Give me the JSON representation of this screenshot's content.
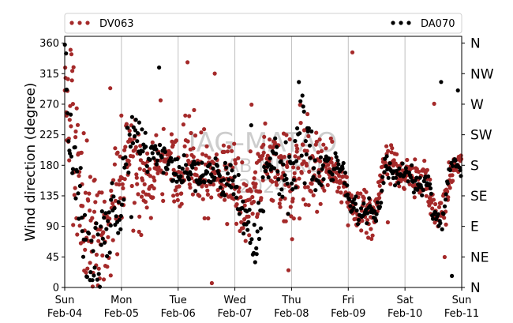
{
  "chart_data": {
    "type": "scatter",
    "title": "",
    "xlabel": "",
    "ylabel": "Wind direction (degree)",
    "ylim": [
      0,
      370
    ],
    "yticks": [
      0,
      45,
      90,
      135,
      180,
      225,
      270,
      315,
      360
    ],
    "compass_ticks": [
      {
        "value": 0,
        "label": "N"
      },
      {
        "value": 45,
        "label": "NE"
      },
      {
        "value": 90,
        "label": "E"
      },
      {
        "value": 135,
        "label": "SE"
      },
      {
        "value": 180,
        "label": "S"
      },
      {
        "value": 225,
        "label": "SW"
      },
      {
        "value": 270,
        "label": "W"
      },
      {
        "value": 315,
        "label": "NW"
      },
      {
        "value": 360,
        "label": "N"
      }
    ],
    "x_ticks": [
      {
        "day": 0,
        "weekday": "Sun",
        "date": "Feb-04"
      },
      {
        "day": 1,
        "weekday": "Mon",
        "date": "Feb-05"
      },
      {
        "day": 2,
        "weekday": "Tue",
        "date": "Feb-06"
      },
      {
        "day": 3,
        "weekday": "Wed",
        "date": "Feb-07"
      },
      {
        "day": 4,
        "weekday": "Thu",
        "date": "Feb-08"
      },
      {
        "day": 5,
        "weekday": "Fri",
        "date": "Feb-09"
      },
      {
        "day": 6,
        "weekday": "Sat",
        "date": "Feb-10"
      },
      {
        "day": 7,
        "weekday": "Sun",
        "date": "Feb-11"
      }
    ],
    "grid": "vertical",
    "legend_placement": "top",
    "watermark": [
      "IAG-MATAO",
      "LAB MICRO",
      "2024"
    ],
    "series": [
      {
        "name": "DV063",
        "color": "#a52a2a",
        "trend": [
          [
            0,
            300
          ],
          [
            0.1,
            260
          ],
          [
            0.25,
            140
          ],
          [
            0.4,
            80
          ],
          [
            0.55,
            60
          ],
          [
            0.7,
            75
          ],
          [
            0.85,
            100
          ],
          [
            1.0,
            160
          ],
          [
            1.15,
            200
          ],
          [
            1.3,
            160
          ],
          [
            1.45,
            150
          ],
          [
            1.6,
            175
          ],
          [
            1.75,
            195
          ],
          [
            1.9,
            185
          ],
          [
            2.05,
            165
          ],
          [
            2.2,
            210
          ],
          [
            2.35,
            180
          ],
          [
            2.5,
            150
          ],
          [
            2.65,
            160
          ],
          [
            2.8,
            165
          ],
          [
            2.95,
            150
          ],
          [
            3.1,
            130
          ],
          [
            3.25,
            120
          ],
          [
            3.4,
            150
          ],
          [
            3.55,
            195
          ],
          [
            3.7,
            180
          ],
          [
            3.85,
            150
          ],
          [
            4.0,
            140
          ],
          [
            4.15,
            200
          ],
          [
            4.3,
            160
          ],
          [
            4.45,
            170
          ],
          [
            4.6,
            185
          ],
          [
            4.75,
            170
          ],
          [
            4.9,
            150
          ],
          [
            5.0,
            120
          ],
          [
            5.15,
            110
          ],
          [
            5.3,
            120
          ],
          [
            5.45,
            100
          ],
          [
            5.6,
            175
          ],
          [
            5.75,
            195
          ],
          [
            5.9,
            165
          ],
          [
            6.05,
            165
          ],
          [
            6.2,
            160
          ],
          [
            6.35,
            165
          ],
          [
            6.5,
            115
          ],
          [
            6.65,
            105
          ],
          [
            6.8,
            170
          ],
          [
            6.9,
            185
          ],
          [
            7.0,
            185
          ]
        ],
        "spread": [
          [
            0,
            100
          ],
          [
            0.4,
            70
          ],
          [
            0.9,
            60
          ],
          [
            1.2,
            55
          ],
          [
            1.5,
            40
          ],
          [
            1.8,
            30
          ],
          [
            2.1,
            60
          ],
          [
            2.4,
            50
          ],
          [
            2.7,
            25
          ],
          [
            3.0,
            35
          ],
          [
            3.3,
            55
          ],
          [
            3.6,
            30
          ],
          [
            3.9,
            60
          ],
          [
            4.2,
            55
          ],
          [
            4.5,
            40
          ],
          [
            4.8,
            20
          ],
          [
            5.1,
            20
          ],
          [
            5.4,
            25
          ],
          [
            5.7,
            20
          ],
          [
            6.0,
            18
          ],
          [
            6.3,
            18
          ],
          [
            6.6,
            18
          ],
          [
            7.0,
            12
          ]
        ],
        "count": 900
      },
      {
        "name": "DA070",
        "color": "#000000",
        "trend": [
          [
            0,
            320
          ],
          [
            0.2,
            150
          ],
          [
            0.4,
            50
          ],
          [
            0.55,
            35
          ],
          [
            0.7,
            80
          ],
          [
            0.85,
            110
          ],
          [
            1.0,
            120
          ],
          [
            1.15,
            250
          ],
          [
            1.3,
            230
          ],
          [
            1.45,
            190
          ],
          [
            1.6,
            200
          ],
          [
            1.75,
            190
          ],
          [
            1.9,
            175
          ],
          [
            2.05,
            165
          ],
          [
            2.2,
            175
          ],
          [
            2.35,
            160
          ],
          [
            2.5,
            165
          ],
          [
            2.65,
            170
          ],
          [
            2.8,
            160
          ],
          [
            2.95,
            160
          ],
          [
            3.1,
            125
          ],
          [
            3.25,
            100
          ],
          [
            3.4,
            60
          ],
          [
            3.55,
            180
          ],
          [
            3.7,
            185
          ],
          [
            3.85,
            160
          ],
          [
            4.0,
            150
          ],
          [
            4.1,
            200
          ],
          [
            4.25,
            250
          ],
          [
            4.4,
            150
          ],
          [
            4.55,
            185
          ],
          [
            4.7,
            175
          ],
          [
            4.85,
            175
          ],
          [
            4.95,
            155
          ],
          [
            5.05,
            120
          ],
          [
            5.2,
            110
          ],
          [
            5.35,
            115
          ],
          [
            5.5,
            100
          ],
          [
            5.65,
            175
          ],
          [
            5.8,
            170
          ],
          [
            5.95,
            165
          ],
          [
            6.1,
            160
          ],
          [
            6.25,
            150
          ],
          [
            6.4,
            160
          ],
          [
            6.5,
            110
          ],
          [
            6.65,
            95
          ],
          [
            6.8,
            180
          ],
          [
            6.9,
            180
          ],
          [
            7.0,
            175
          ]
        ],
        "spread": [
          [
            0,
            60
          ],
          [
            0.4,
            50
          ],
          [
            0.8,
            40
          ],
          [
            1.1,
            40
          ],
          [
            1.5,
            18
          ],
          [
            2.0,
            15
          ],
          [
            2.5,
            15
          ],
          [
            3.0,
            20
          ],
          [
            3.3,
            45
          ],
          [
            3.6,
            20
          ],
          [
            4.1,
            55
          ],
          [
            4.5,
            20
          ],
          [
            5.0,
            15
          ],
          [
            5.5,
            15
          ],
          [
            6.0,
            12
          ],
          [
            6.5,
            12
          ],
          [
            7.0,
            10
          ]
        ],
        "count": 480
      }
    ]
  }
}
